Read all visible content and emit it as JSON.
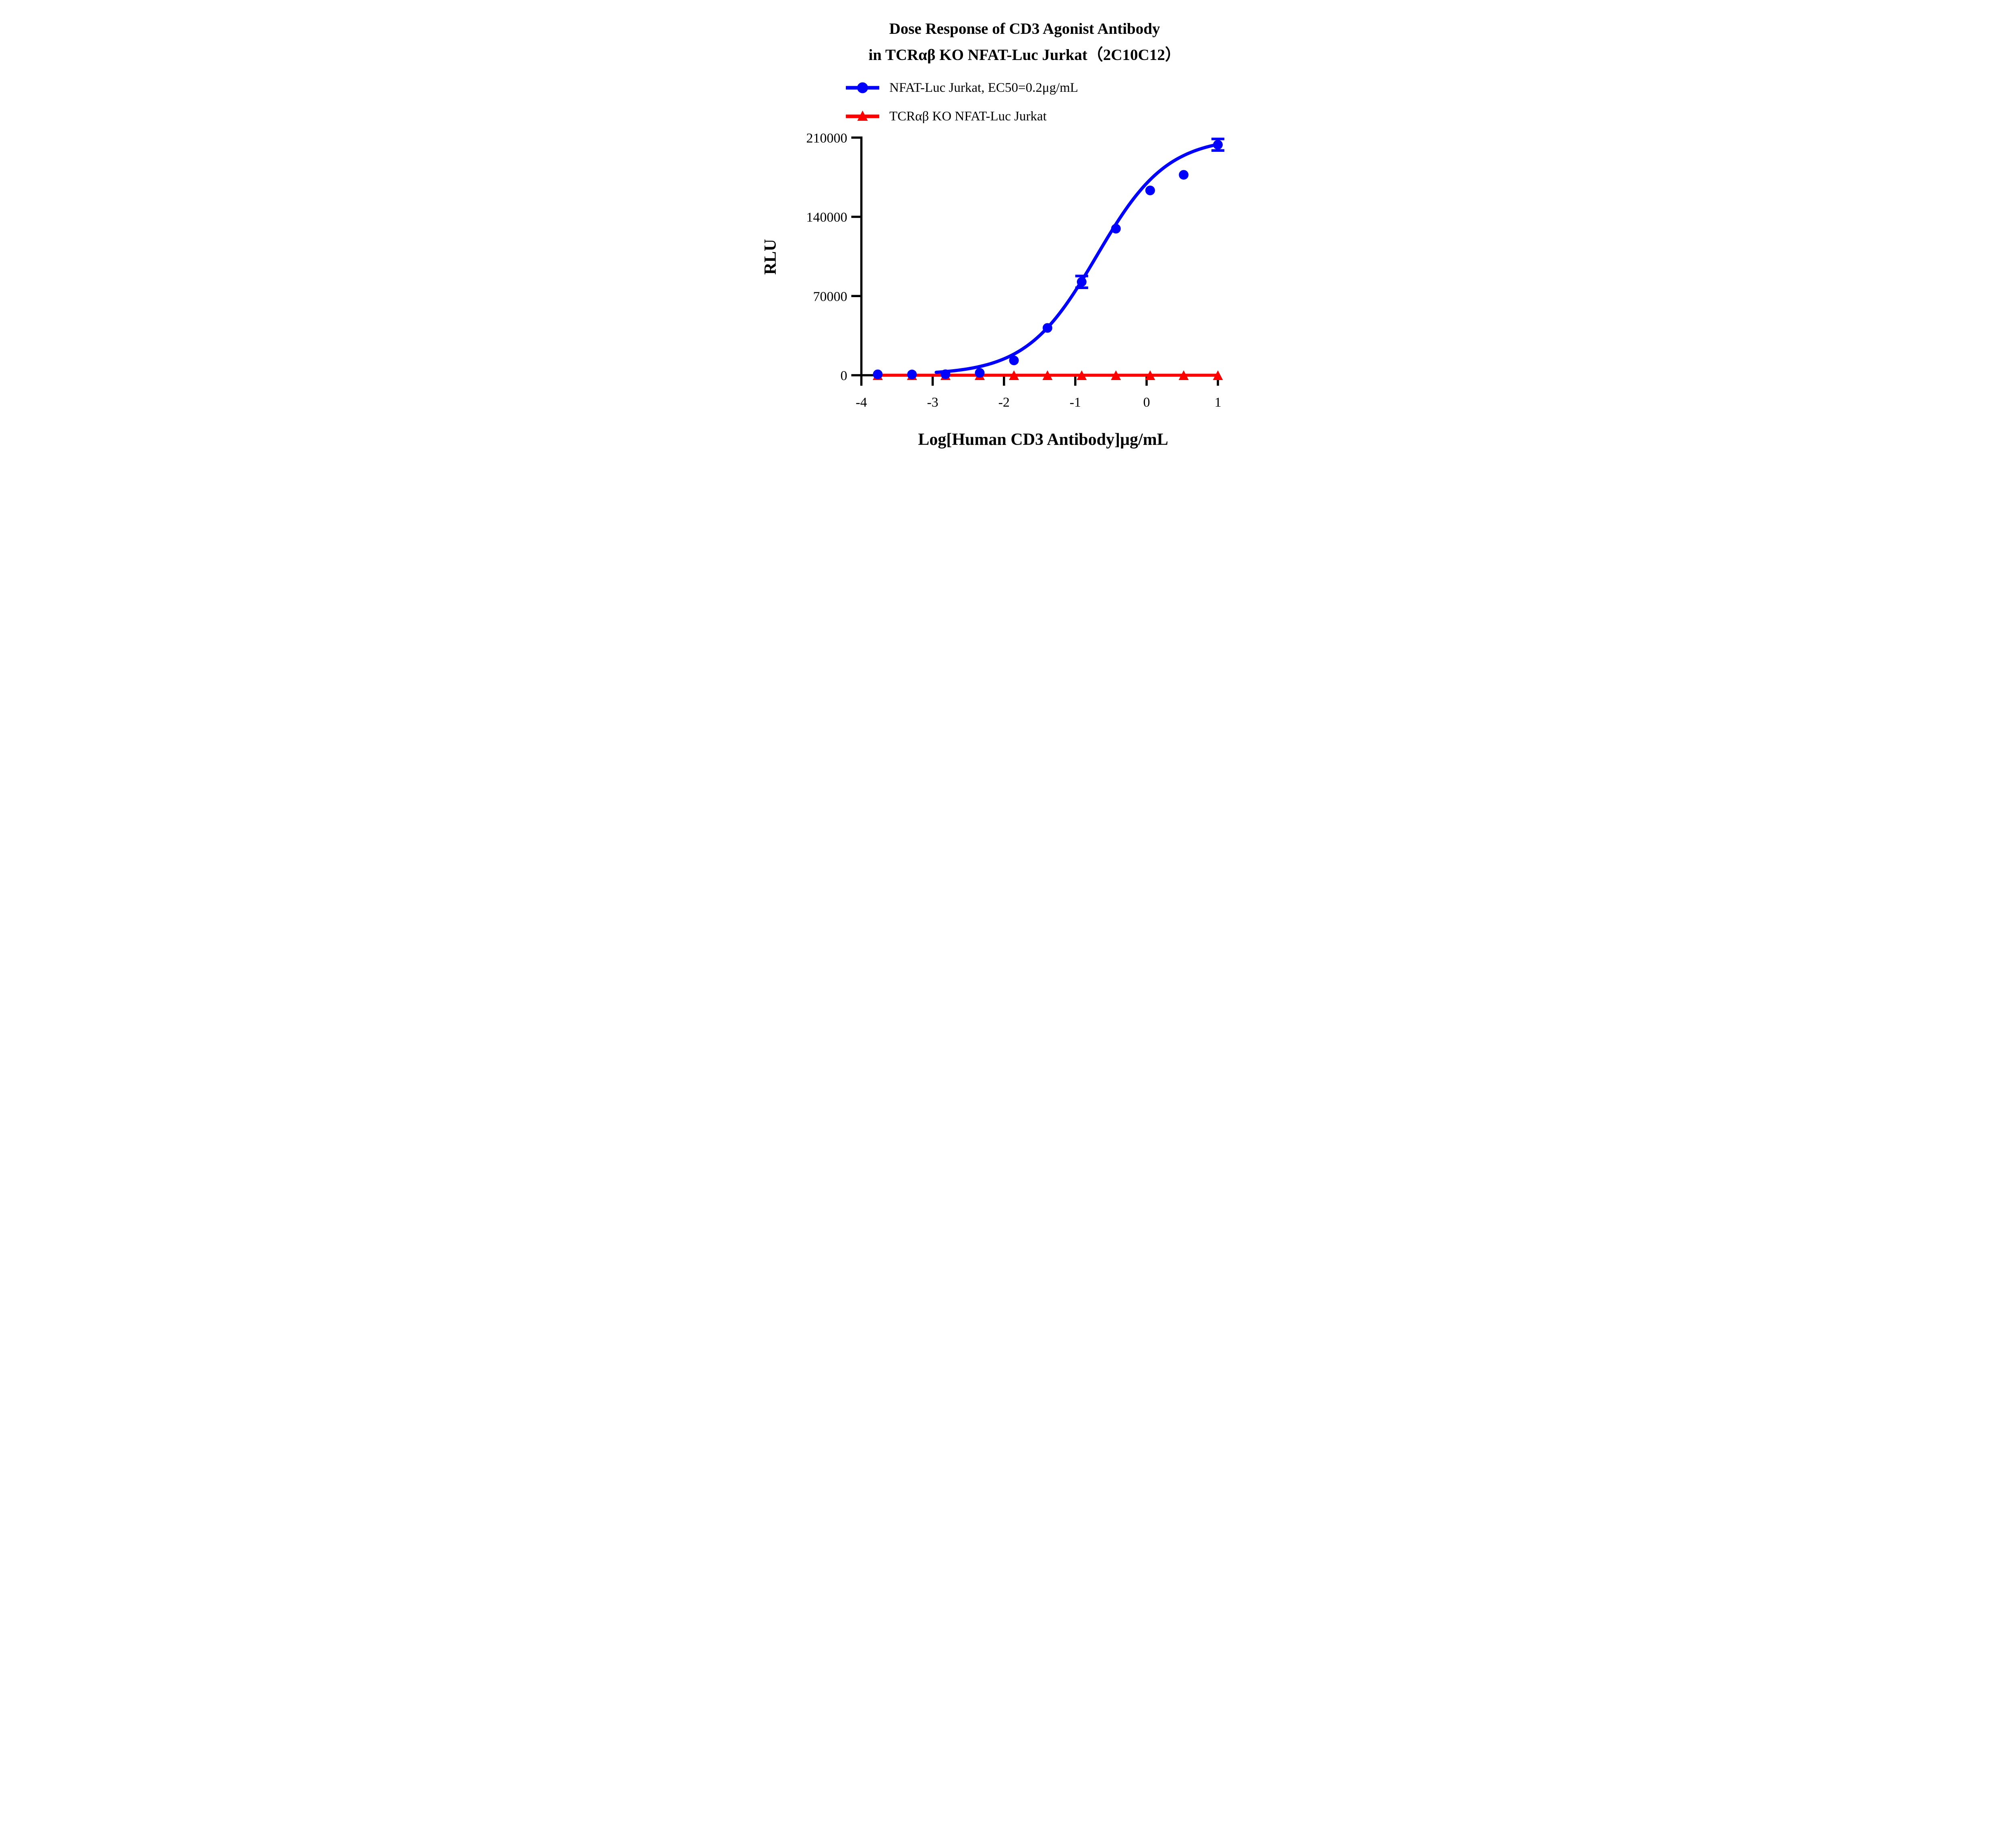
{
  "chart_data": {
    "type": "scatter",
    "title_line1": "Dose Response of CD3 Agonist Antibody",
    "title_line2": "in TCRαβ KO NFAT-Luc Jurkat（2C10C12）",
    "xlabel": "Log[Human CD3 Antibody]μg/mL",
    "ylabel": "RLU",
    "x_ticks": [
      "-4",
      "-3",
      "-2",
      "-1",
      "0",
      "1"
    ],
    "x_tick_values": [
      -4,
      -3,
      -2,
      -1,
      0,
      1
    ],
    "y_ticks": [
      "0",
      "70000",
      "140000",
      "210000"
    ],
    "y_tick_values": [
      0,
      70000,
      140000,
      210000
    ],
    "xlim": [
      -4,
      1.026
    ],
    "ylim": [
      0,
      210000
    ],
    "grid": false,
    "legend_position": "above-plot-left",
    "axis_color": "#000000",
    "series": [
      {
        "name": "NFAT-Luc Jurkat, EC50=0.2μg/mL",
        "ec50_label": "EC50=0.2μg/mL",
        "color": "#0000FF",
        "marker": "circle",
        "x": [
          -3.77,
          -3.29,
          -2.82,
          -2.34,
          -1.86,
          -1.39,
          -0.91,
          -0.43,
          0.05,
          0.52,
          1.0
        ],
        "y": [
          800,
          700,
          900,
          2100,
          13100,
          41800,
          82500,
          129500,
          163300,
          177100,
          203700
        ],
        "y_err": [
          0,
          0,
          0,
          0,
          0,
          0,
          5200,
          0,
          0,
          0,
          5100
        ],
        "fit_curve": {
          "model": "4PL",
          "bottom": 400,
          "top": 210500,
          "log_ec50": -0.7,
          "hill": 0.88,
          "x_start": -2.95,
          "x_end": 1.0
        }
      },
      {
        "name": "TCRαβ KO NFAT-Luc Jurkat",
        "color": "#FF0000",
        "marker": "triangle",
        "x": [
          -3.77,
          -3.29,
          -2.82,
          -2.34,
          -1.86,
          -1.39,
          -0.91,
          -0.43,
          0.05,
          0.52,
          1.0
        ],
        "y": [
          0,
          0,
          0,
          0,
          0,
          0,
          0,
          0,
          0,
          0,
          0
        ],
        "y_err": [
          0,
          0,
          0,
          0,
          0,
          0,
          0,
          0,
          0,
          0,
          0
        ],
        "line": "straight"
      }
    ]
  }
}
